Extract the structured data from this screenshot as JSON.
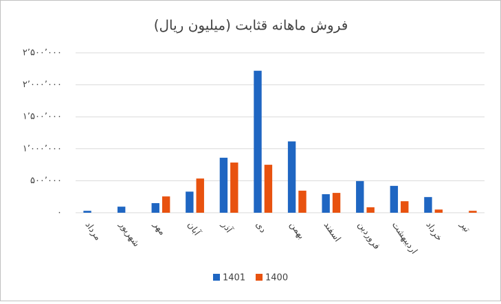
{
  "chart_data": {
    "type": "bar",
    "title": "فروش ماهانه قثابت (میلیون ریال)",
    "categories": [
      "مرداد",
      "شهریور",
      "مهر",
      "آبان",
      "آذر",
      "دی",
      "بهمن",
      "اسفند",
      "فروردین",
      "اردیبهشت",
      "خرداد",
      "تیر"
    ],
    "series": [
      {
        "name": "1401",
        "color": "#1f66c2",
        "values": [
          30000,
          95000,
          150000,
          330000,
          860000,
          2220000,
          1115000,
          290000,
          495000,
          420000,
          245000,
          0
        ]
      },
      {
        "name": "1400",
        "color": "#e8520f",
        "values": [
          0,
          0,
          255000,
          535000,
          785000,
          750000,
          345000,
          310000,
          85000,
          180000,
          50000,
          30000
        ]
      }
    ],
    "ylim": [
      0,
      2500000
    ],
    "yticks": [
      {
        "value": 0,
        "label": "۰"
      },
      {
        "value": 500000,
        "label": "۵۰۰٬۰۰۰"
      },
      {
        "value": 1000000,
        "label": "۱٬۰۰۰٬۰۰۰"
      },
      {
        "value": 1500000,
        "label": "۱٬۵۰۰٬۰۰۰"
      },
      {
        "value": 2000000,
        "label": "۲٬۰۰۰٬۰۰۰"
      },
      {
        "value": 2500000,
        "label": "۲٬۵۰۰٬۰۰۰"
      }
    ],
    "grid": true
  }
}
